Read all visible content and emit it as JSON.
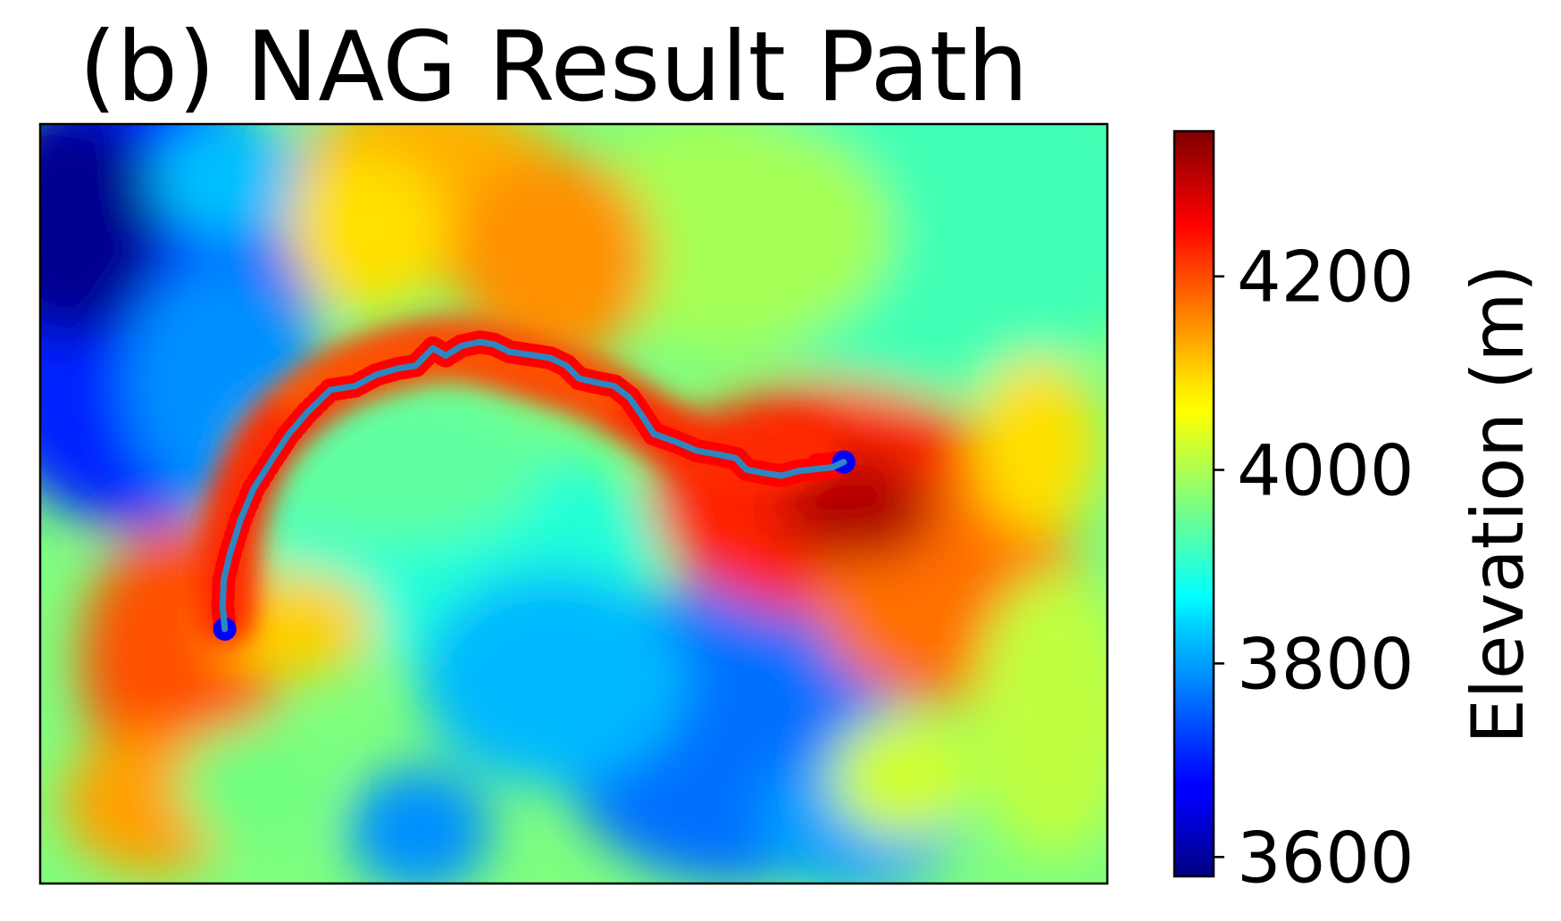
{
  "chart_data": {
    "type": "heatmap",
    "title": "(b) NAG Result Path",
    "colormap": "jet",
    "xticks": [],
    "yticks": [],
    "colorbar": {
      "label": "Elevation (m)",
      "range": [
        3580,
        4350
      ],
      "ticks": [
        3600,
        3800,
        4000,
        4200
      ],
      "tick_labels": [
        "3600",
        "3800",
        "4000",
        "4200"
      ]
    },
    "path": {
      "color": "#2e86c1",
      "marker_color": "#ff0000",
      "start_marker_color": "#0000ff",
      "end_marker_color": "#0000ff",
      "points": [
        [
          0.173,
          0.665
        ],
        [
          0.171,
          0.635
        ],
        [
          0.172,
          0.6
        ],
        [
          0.178,
          0.565
        ],
        [
          0.188,
          0.52
        ],
        [
          0.2,
          0.48
        ],
        [
          0.218,
          0.44
        ],
        [
          0.232,
          0.41
        ],
        [
          0.25,
          0.38
        ],
        [
          0.272,
          0.35
        ],
        [
          0.295,
          0.345
        ],
        [
          0.315,
          0.33
        ],
        [
          0.335,
          0.322
        ],
        [
          0.352,
          0.318
        ],
        [
          0.368,
          0.295
        ],
        [
          0.38,
          0.305
        ],
        [
          0.395,
          0.292
        ],
        [
          0.412,
          0.287
        ],
        [
          0.425,
          0.29
        ],
        [
          0.44,
          0.3
        ],
        [
          0.46,
          0.304
        ],
        [
          0.478,
          0.308
        ],
        [
          0.493,
          0.318
        ],
        [
          0.505,
          0.335
        ],
        [
          0.52,
          0.34
        ],
        [
          0.538,
          0.345
        ],
        [
          0.552,
          0.36
        ],
        [
          0.562,
          0.38
        ],
        [
          0.575,
          0.408
        ],
        [
          0.595,
          0.418
        ],
        [
          0.615,
          0.43
        ],
        [
          0.635,
          0.435
        ],
        [
          0.652,
          0.44
        ],
        [
          0.662,
          0.455
        ],
        [
          0.68,
          0.46
        ],
        [
          0.695,
          0.463
        ],
        [
          0.71,
          0.457
        ],
        [
          0.728,
          0.454
        ],
        [
          0.742,
          0.452
        ],
        [
          0.753,
          0.445
        ],
        [
          0.72,
          0.45
        ]
      ]
    }
  }
}
